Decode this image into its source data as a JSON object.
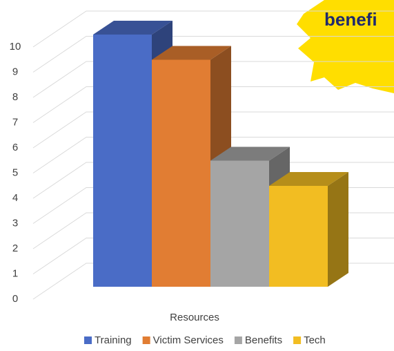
{
  "chart_data": {
    "type": "bar3d",
    "x_label": "Resources",
    "annotation": "benefi",
    "series": [
      {
        "name": "Training",
        "color": "#4a6cc6",
        "values": [
          10
        ]
      },
      {
        "name": "Victim Services",
        "color": "#e17d33",
        "values": [
          9
        ]
      },
      {
        "name": "Benefits",
        "color": "#a5a5a5",
        "values": [
          5
        ]
      },
      {
        "name": "Tech",
        "color": "#f2bd22",
        "values": [
          4
        ]
      }
    ],
    "ylim": [
      0,
      10
    ],
    "yticks": [
      0,
      1,
      2,
      3,
      4,
      5,
      6,
      7,
      8,
      9,
      10
    ],
    "grid": true,
    "legend": "bottom"
  }
}
